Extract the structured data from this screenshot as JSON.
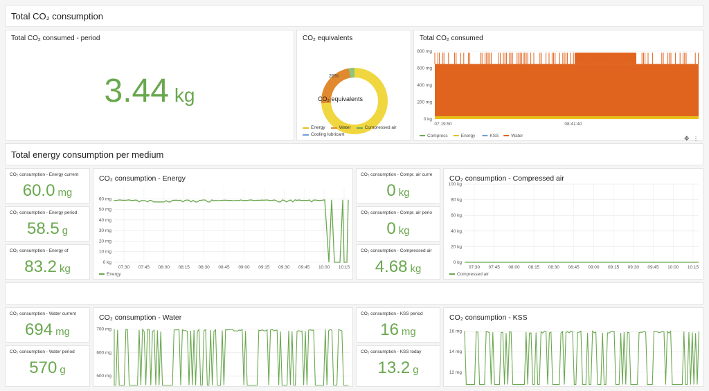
{
  "sections": {
    "total_co2": "Total CO₂ consumption",
    "energy_per_medium": "Total energy consumption per medium"
  },
  "big_stat": {
    "title": "Total CO₂ consumed - period",
    "value": "3.44",
    "unit": "kg"
  },
  "donut": {
    "title": "CO₂ equivalents",
    "center_label": "CO₂ equivalents",
    "slice_label": "26%",
    "legend": [
      {
        "name": "Energy",
        "color": "#e8c21a"
      },
      {
        "name": "Water",
        "color": "#e0892e"
      },
      {
        "name": "Compressed air",
        "color": "#6aa84f"
      },
      {
        "name": "Cooling lubricant",
        "color": "#6f9fd8"
      }
    ]
  },
  "stats": {
    "energy_current": {
      "title": "CO₂ consumption - Energy current",
      "value": "60.0",
      "unit": "mg"
    },
    "energy_period": {
      "title": "CO₂ consumption - Energy period",
      "value": "58.5",
      "unit": "g"
    },
    "energy_of": {
      "title": "CO₂ consumption - Energy of",
      "value": "83.2",
      "unit": "kg"
    },
    "air_current": {
      "title": "CO₂ consumption - Compr. air curre",
      "value": "0",
      "unit": "kg"
    },
    "air_period": {
      "title": "CO₂ consumption - Compr. air perio",
      "value": "0",
      "unit": "kg"
    },
    "air_total": {
      "title": "CO₂ consumption - Compressed air",
      "value": "4.68",
      "unit": "kg"
    },
    "water_current": {
      "title": "CO₂ consumption - Water current",
      "value": "694",
      "unit": "mg"
    },
    "water_period": {
      "title": "CO₂ consumption - Water period",
      "value": "570",
      "unit": "g"
    },
    "kss_period": {
      "title": "CO₂ consumption - KSS period",
      "value": "16",
      "unit": "mg"
    },
    "kss_today": {
      "title": "CO₂ consumption - KSS today",
      "value": "13.2",
      "unit": "g"
    }
  },
  "chart_data": [
    {
      "id": "total",
      "type": "area",
      "title": "Total CO₂ consumed",
      "yticks": [
        "800 mg",
        "600 mg",
        "400 mg",
        "200 mg",
        "0 kg"
      ],
      "ytick_values": [
        800,
        600,
        400,
        200,
        0
      ],
      "xticks": [
        "07:19:50",
        "08:41:40"
      ],
      "legend": [
        {
          "name": "Compress",
          "color": "#6aa84f"
        },
        {
          "name": "Energy",
          "color": "#e8c21a"
        },
        {
          "name": "KSS",
          "color": "#6f9fd8"
        },
        {
          "name": "Water",
          "color": "#e0641e"
        }
      ],
      "series_level_mg": 650,
      "ylim": [
        0,
        800
      ]
    },
    {
      "id": "energy",
      "type": "line",
      "title": "CO₂ consumption - Energy",
      "yticks": [
        "60 mg",
        "50 mg",
        "40 mg",
        "30 mg",
        "20 mg",
        "10 mg",
        "0 kg"
      ],
      "ytick_values": [
        60,
        50,
        40,
        30,
        20,
        10,
        0
      ],
      "xticks": [
        "07:30",
        "07:45",
        "08:00",
        "08:15",
        "08:30",
        "08:45",
        "09:00",
        "09:15",
        "09:30",
        "09:45",
        "10:00",
        "10:15"
      ],
      "legend": [
        {
          "name": "Energy",
          "color": "#6aa84f"
        }
      ],
      "level": 59,
      "ylim": [
        0,
        70
      ]
    },
    {
      "id": "air",
      "type": "line",
      "title": "CO₂ consumption - Compressed air",
      "yticks": [
        "100 kg",
        "80 kg",
        "60 kg",
        "40 kg",
        "20 kg",
        "0 kg"
      ],
      "ytick_values": [
        100,
        80,
        60,
        40,
        20,
        0
      ],
      "xticks": [
        "07:30",
        "07:45",
        "08:00",
        "08:15",
        "08:30",
        "08:45",
        "09:00",
        "09:15",
        "09:30",
        "09:45",
        "10:00",
        "10:15"
      ],
      "legend": [
        {
          "name": "Compressed air",
          "color": "#6aa84f"
        }
      ],
      "level": 0,
      "ylim": [
        0,
        100
      ]
    },
    {
      "id": "water",
      "type": "line",
      "title": "CO₂ consumption - Water",
      "yticks": [
        "700 mg",
        "600 mg",
        "500 mg"
      ],
      "ytick_values": [
        700,
        600,
        500
      ],
      "ylim": [
        450,
        720
      ]
    },
    {
      "id": "kss",
      "type": "line",
      "title": "CO₂ consumption - KSS",
      "yticks": [
        "16 mg",
        "14 mg",
        "12 mg"
      ],
      "ytick_values": [
        16,
        14,
        12
      ],
      "ylim": [
        10.5,
        16.5
      ]
    }
  ]
}
